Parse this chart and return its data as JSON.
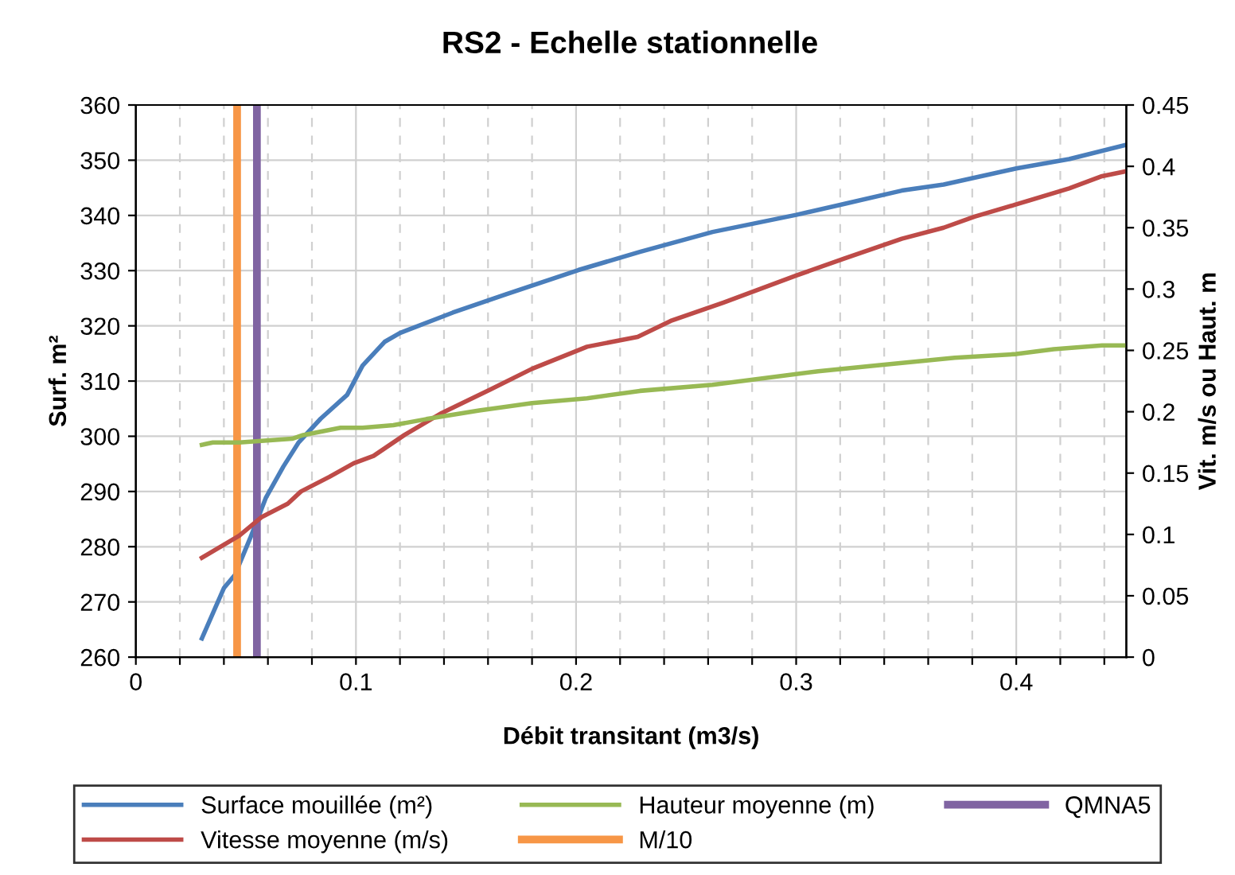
{
  "chart_data": {
    "type": "line",
    "title": "RS2 - Echelle stationnelle",
    "xlabel": "Débit transitant (m3/s)",
    "ylabel": "Surf. m²",
    "y2label": "Vit. m/s ou Haut. m",
    "xlim": [
      0,
      0.45
    ],
    "xticks": [
      0,
      {
        "value": 0.02,
        "label": null
      },
      {
        "value": 0.04,
        "label": null
      },
      {
        "value": 0.06,
        "label": null
      },
      {
        "value": 0.08,
        "label": null
      },
      0.1,
      {
        "value": 0.12,
        "label": null
      },
      {
        "value": 0.14,
        "label": null
      },
      {
        "value": 0.16,
        "label": null
      },
      {
        "value": 0.18,
        "label": null
      },
      0.2,
      {
        "value": 0.22,
        "label": null
      },
      {
        "value": 0.24,
        "label": null
      },
      {
        "value": 0.26,
        "label": null
      },
      {
        "value": 0.28,
        "label": null
      },
      0.3,
      {
        "value": 0.32,
        "label": null
      },
      {
        "value": 0.34,
        "label": null
      },
      {
        "value": 0.36,
        "label": null
      },
      {
        "value": 0.38,
        "label": null
      },
      0.4,
      {
        "value": 0.42,
        "label": null
      },
      {
        "value": 0.44,
        "label": null
      }
    ],
    "ylim": [
      260,
      360
    ],
    "yticks": [
      260,
      270,
      280,
      290,
      300,
      310,
      320,
      330,
      340,
      350,
      360
    ],
    "y2lim": [
      0,
      0.45
    ],
    "y2ticks": [
      0,
      0.05,
      0.1,
      0.15,
      0.2,
      0.25,
      0.3,
      0.35,
      0.4,
      0.45
    ],
    "grid": true,
    "legend": "bottom",
    "series": [
      {
        "name": "Surface mouillée (m²)",
        "color": "#4a7ebb",
        "x": [
          0.03,
          0.04,
          0.045,
          0.052,
          0.059,
          0.067,
          0.074,
          0.084,
          0.096,
          0.103,
          0.113,
          0.12,
          0.144,
          0.168,
          0.201,
          0.229,
          0.262,
          0.3,
          0.322,
          0.348,
          0.367,
          0.4,
          0.424,
          0.45
        ],
        "values": [
          263.4,
          272.5,
          274.9,
          281.6,
          288.8,
          294.5,
          298.9,
          303.2,
          307.5,
          312.8,
          317.1,
          318.7,
          322.4,
          325.7,
          330.1,
          333.4,
          337.0,
          340.1,
          342.1,
          344.5,
          345.6,
          348.5,
          350.2,
          352.8
        ]
      },
      {
        "name": "Vitesse moyenne (m/s)",
        "color": "#be4b48",
        "axis": "y2",
        "x": [
          0.03,
          0.047,
          0.057,
          0.069,
          0.075,
          0.088,
          0.099,
          0.108,
          0.122,
          0.139,
          0.161,
          0.18,
          0.205,
          0.228,
          0.243,
          0.267,
          0.3,
          0.322,
          0.348,
          0.367,
          0.381,
          0.4,
          0.424,
          0.439,
          0.45
        ],
        "values": [
          0.081,
          0.099,
          0.114,
          0.125,
          0.135,
          0.147,
          0.158,
          0.164,
          0.181,
          0.199,
          0.218,
          0.235,
          0.253,
          0.261,
          0.274,
          0.289,
          0.311,
          0.325,
          0.341,
          0.35,
          0.359,
          0.369,
          0.382,
          0.392,
          0.396
        ]
      },
      {
        "name": "Hauteur moyenne (m)",
        "color": "#98b954",
        "axis": "y2",
        "x": [
          0.03,
          0.035,
          0.047,
          0.071,
          0.076,
          0.093,
          0.103,
          0.117,
          0.132,
          0.156,
          0.18,
          0.205,
          0.229,
          0.262,
          0.31,
          0.338,
          0.372,
          0.4,
          0.417,
          0.439,
          0.45
        ],
        "values": [
          0.173,
          0.175,
          0.175,
          0.178,
          0.181,
          0.187,
          0.187,
          0.189,
          0.194,
          0.201,
          0.207,
          0.211,
          0.217,
          0.222,
          0.233,
          0.238,
          0.244,
          0.247,
          0.251,
          0.254,
          0.254
        ]
      }
    ],
    "ref_lines": [
      {
        "axis": "x",
        "value": 0.046,
        "label": "M/10",
        "color": "#f79646"
      },
      {
        "axis": "x",
        "value": 0.055,
        "label": "QMNA5",
        "color": "#8064a2"
      }
    ]
  }
}
